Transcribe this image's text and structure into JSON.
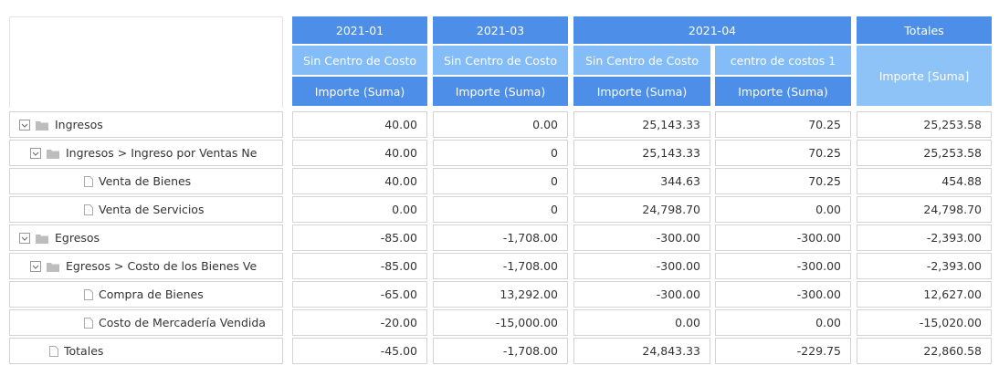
{
  "columns": {
    "dates": [
      "2021-01",
      "2021-03",
      "2021-04",
      "Totales"
    ],
    "centers": [
      "Sin Centro de Costo",
      "Sin Centro de Costo",
      "Sin Centro de Costo",
      "centro de costos 1"
    ],
    "measures": [
      "Importe (Suma)",
      "Importe (Suma)",
      "Importe (Suma)",
      "Importe (Suma)"
    ],
    "total_measure": "Importe [Suma]"
  },
  "rows": [
    {
      "label": "Ingresos",
      "values": [
        "40.00",
        "0.00",
        "25,143.33",
        "70.25",
        "25,253.58"
      ]
    },
    {
      "label": "Ingresos > Ingreso por Ventas Ne",
      "values": [
        "40.00",
        "0",
        "25,143.33",
        "70.25",
        "25,253.58"
      ]
    },
    {
      "label": "Venta de Bienes",
      "values": [
        "40.00",
        "0",
        "344.63",
        "70.25",
        "454.88"
      ]
    },
    {
      "label": "Venta de Servicios",
      "values": [
        "0.00",
        "0",
        "24,798.70",
        "0.00",
        "24,798.70"
      ]
    },
    {
      "label": "Egresos",
      "values": [
        "-85.00",
        "-1,708.00",
        "-300.00",
        "-300.00",
        "-2,393.00"
      ]
    },
    {
      "label": "Egresos > Costo de los Bienes Ve",
      "values": [
        "-85.00",
        "-1,708.00",
        "-300.00",
        "-300.00",
        "-2,393.00"
      ]
    },
    {
      "label": "Compra de Bienes",
      "values": [
        "-65.00",
        "13,292.00",
        "-300.00",
        "-300.00",
        "12,627.00"
      ]
    },
    {
      "label": "Costo de Mercadería Vendida",
      "values": [
        "-20.00",
        "-15,000.00",
        "0.00",
        "0.00",
        "-15,020.00"
      ]
    },
    {
      "label": "Totales",
      "values": [
        "-45.00",
        "-1,708.00",
        "24,843.33",
        "-229.75",
        "22,860.58"
      ]
    }
  ]
}
